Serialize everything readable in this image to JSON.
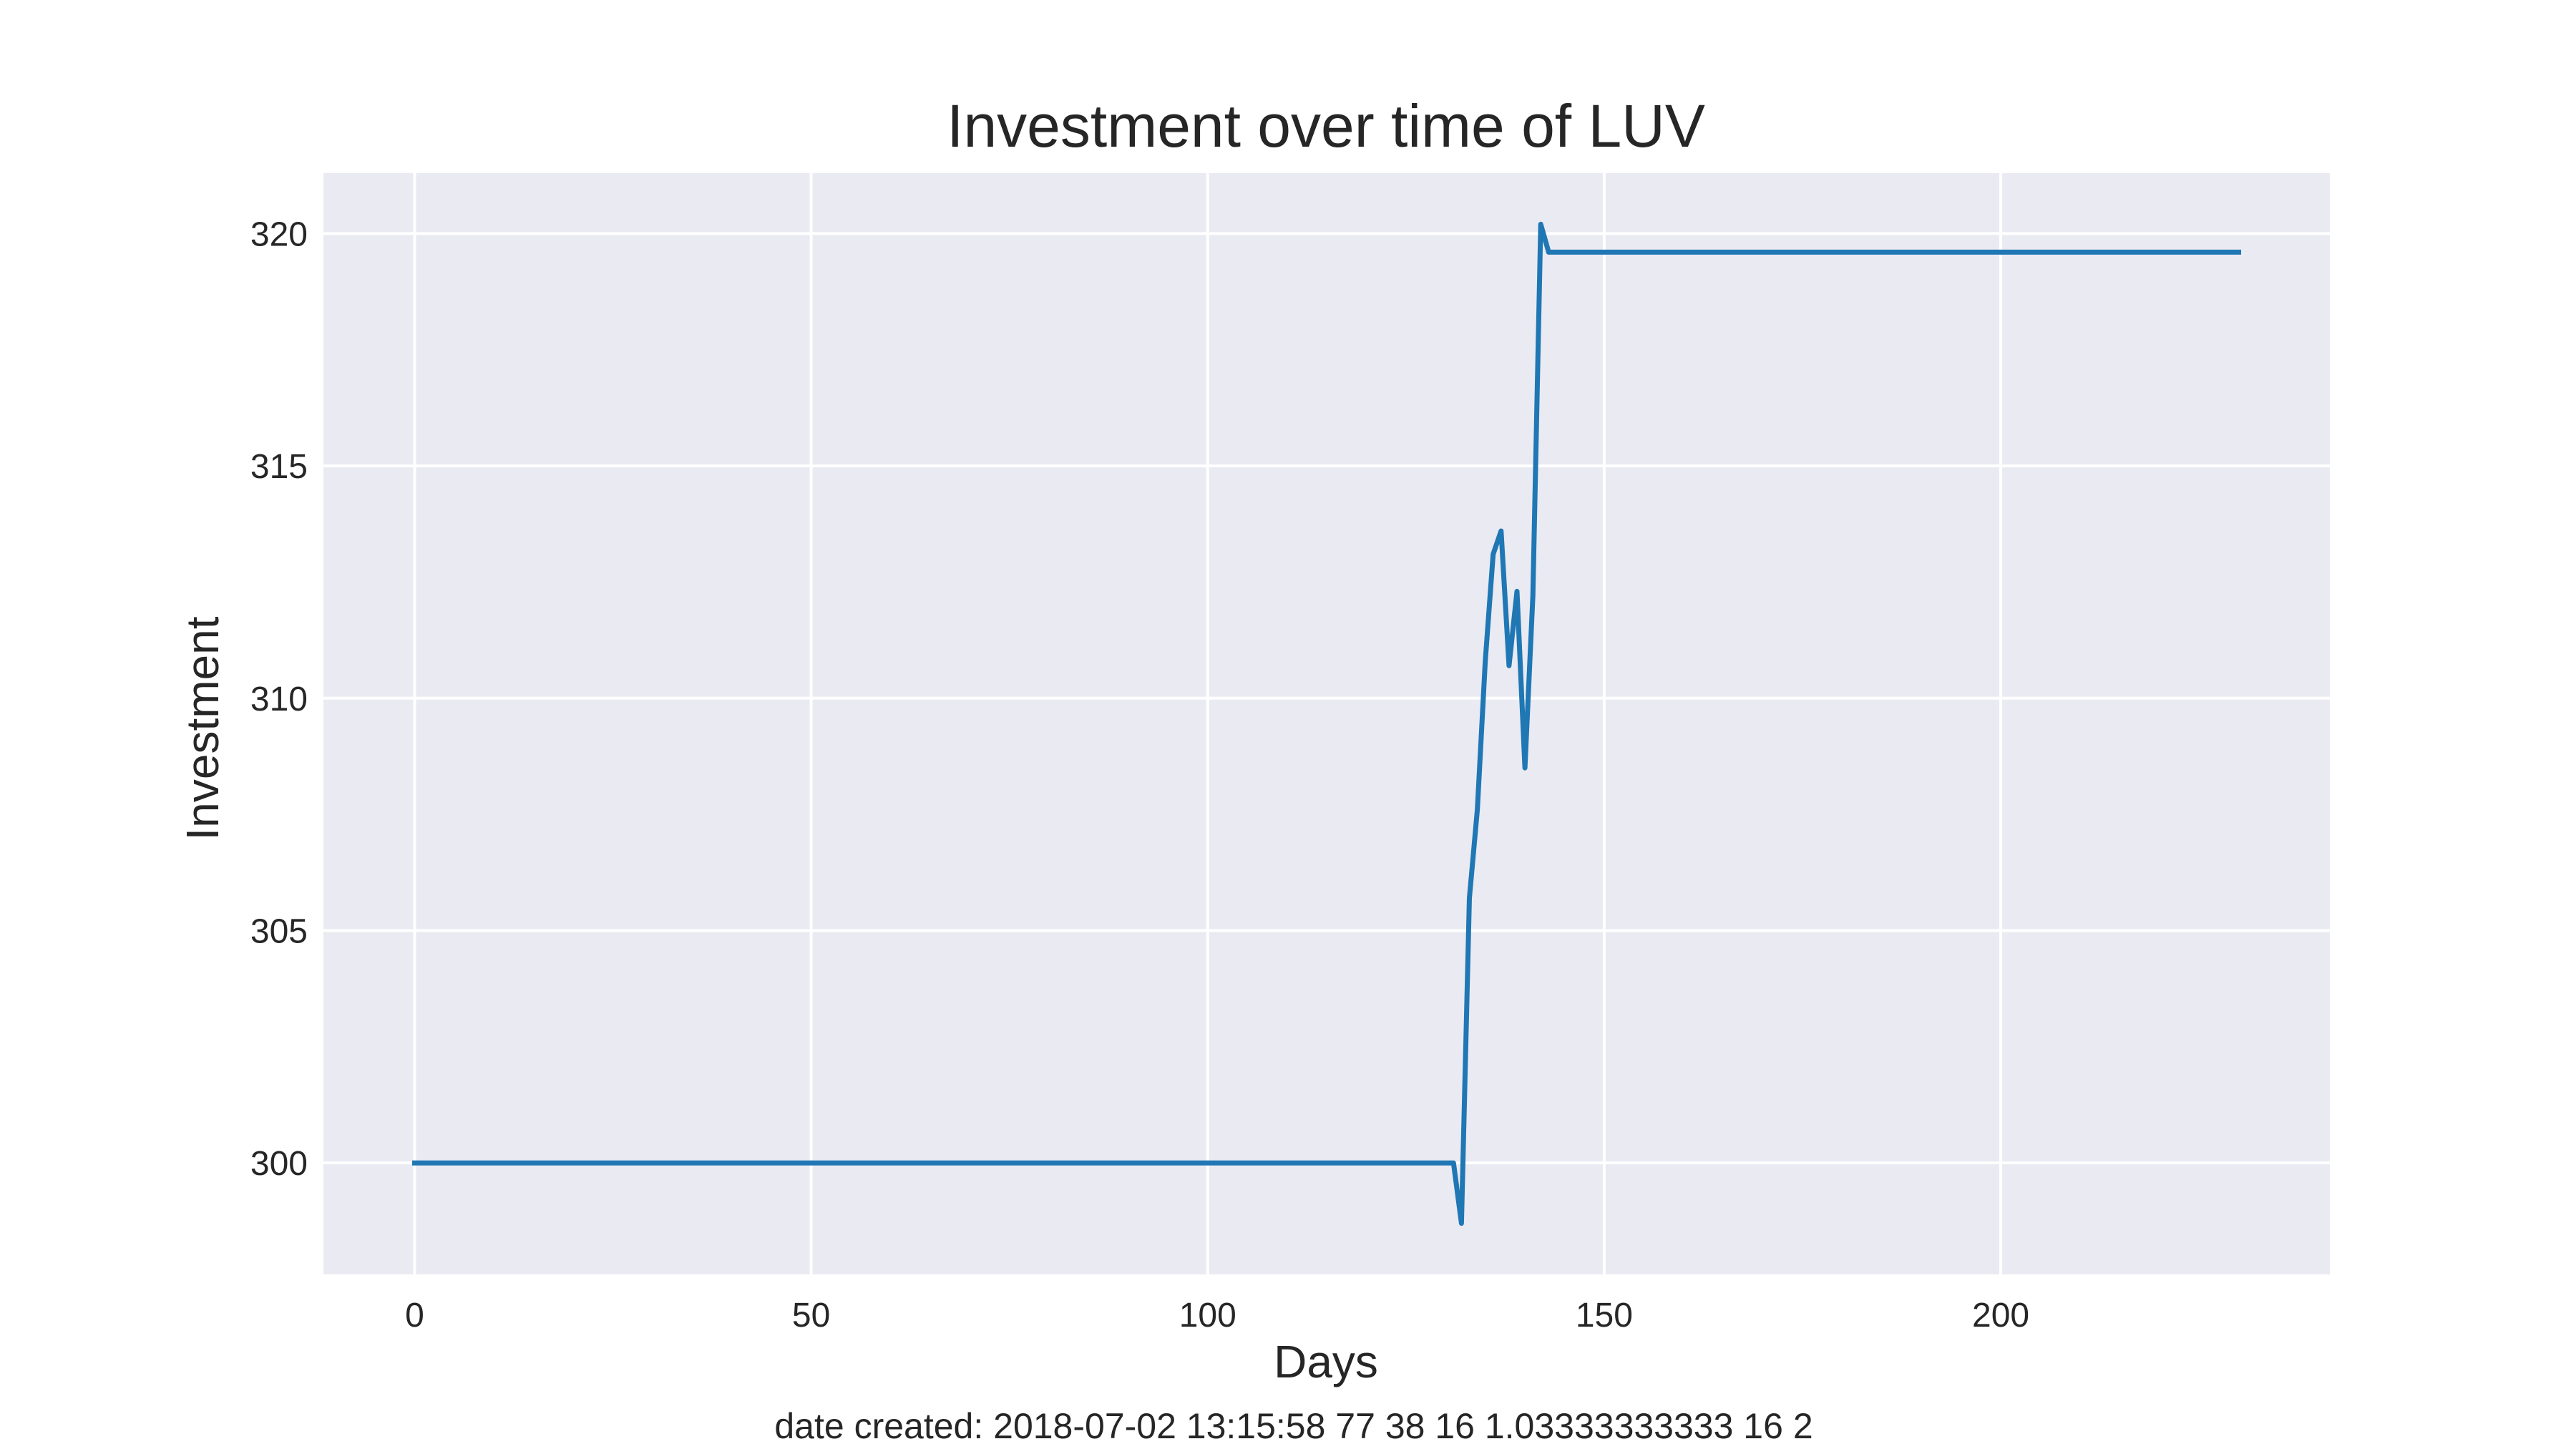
{
  "chart_data": {
    "type": "line",
    "title": "Investment over time of LUV",
    "xlabel": "Days",
    "ylabel": "Investment",
    "footer": "date created: 2018-07-02 13:15:58 77 38 16 1.03333333333 16 2",
    "xlim": [
      -11.5,
      241.5
    ],
    "ylim": [
      297.6,
      321.3
    ],
    "xticks": [
      0,
      50,
      100,
      150,
      200
    ],
    "yticks": [
      300,
      305,
      310,
      315,
      320
    ],
    "grid": true,
    "legend": "none",
    "style": "seaborn-darkgrid",
    "colors": {
      "background": "#EAEAF2",
      "line": "#1F77B4",
      "grid": "#FFFFFF"
    },
    "series": [
      {
        "x": [
          0,
          131,
          132,
          133,
          134,
          135,
          136,
          137,
          138,
          139,
          140,
          141,
          142,
          143,
          230
        ],
        "y": [
          300.0,
          300.0,
          298.7,
          305.7,
          307.6,
          310.8,
          313.1,
          313.6,
          310.7,
          312.3,
          308.5,
          312.2,
          320.2,
          319.6,
          319.6
        ]
      }
    ]
  }
}
